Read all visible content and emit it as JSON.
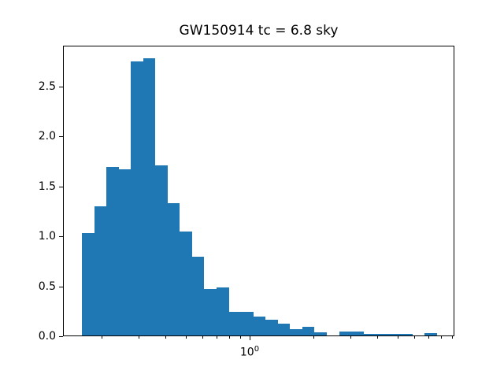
{
  "chart_data": {
    "type": "bar",
    "subtype": "histogram",
    "title": "GW150914 tc = 6.8 sky",
    "xlabel": "",
    "ylabel": "",
    "xscale": "log",
    "grid": false,
    "legend": null,
    "bar_color": "#1f77b4",
    "xlim": [
      0.1315,
      9.26
    ],
    "ylim": [
      0,
      2.908
    ],
    "ytick_values": [
      0.0,
      0.5,
      1.0,
      1.5,
      2.0,
      2.5
    ],
    "ytick_labels": [
      "0.0",
      "0.5",
      "1.0",
      "1.5",
      "2.0",
      "2.5"
    ],
    "xticks_major": [
      {
        "value": 1,
        "base": "10",
        "exp": "0"
      }
    ],
    "xticks_minor": [
      0.2,
      0.3,
      0.4,
      0.5,
      0.6,
      0.7,
      0.8,
      0.9,
      2,
      3,
      4,
      5,
      6,
      7,
      8,
      9
    ],
    "bin_edges": [
      0.16,
      0.183,
      0.209,
      0.239,
      0.273,
      0.312,
      0.356,
      0.407,
      0.464,
      0.531,
      0.606,
      0.692,
      0.791,
      0.904,
      1.032,
      1.179,
      1.347,
      1.539,
      1.758,
      2.009,
      2.295,
      2.622,
      2.995,
      3.422,
      3.909,
      4.466,
      5.102,
      5.829,
      6.658,
      7.603
    ],
    "values": [
      1.027,
      1.294,
      1.688,
      1.664,
      2.74,
      2.777,
      1.703,
      1.321,
      1.04,
      0.791,
      0.468,
      0.484,
      0.24,
      0.24,
      0.193,
      0.157,
      0.117,
      0.062,
      0.088,
      0.031,
      0.0,
      0.041,
      0.041,
      0.017,
      0.017,
      0.017,
      0.017,
      0.0,
      0.024
    ]
  }
}
